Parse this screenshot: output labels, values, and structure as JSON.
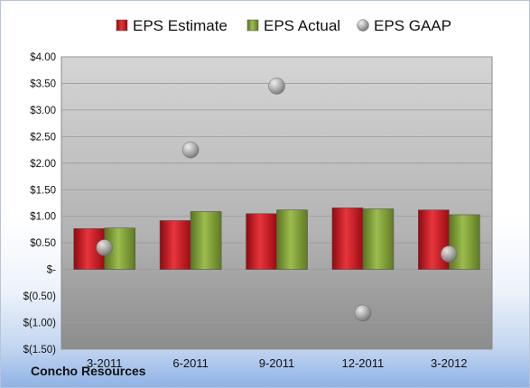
{
  "company": "Concho Resources",
  "chart_data": {
    "type": "bar",
    "title": "",
    "xlabel": "",
    "ylabel": "",
    "categories": [
      "3-2011",
      "6-2011",
      "9-2011",
      "12-2011",
      "3-2012"
    ],
    "series": [
      {
        "name": "EPS Estimate",
        "type": "bar",
        "color": "#c8101a",
        "values": [
          0.77,
          0.92,
          1.05,
          1.16,
          1.12
        ]
      },
      {
        "name": "EPS Actual",
        "type": "bar",
        "color": "#7a9a2c",
        "values": [
          0.78,
          1.09,
          1.12,
          1.14,
          1.03
        ]
      },
      {
        "name": "EPS GAAP",
        "type": "scatter",
        "color": "#a0a0a0",
        "values": [
          0.41,
          2.25,
          3.45,
          -0.82,
          0.29
        ]
      }
    ],
    "ylim": [
      -1.5,
      4.0
    ],
    "yticks": [
      4.0,
      3.5,
      3.0,
      2.5,
      2.0,
      1.5,
      1.0,
      0.5,
      0,
      -0.5,
      -1.0,
      -1.5
    ],
    "ytick_labels": [
      "$4.00",
      "$3.50",
      "$3.00",
      "$2.50",
      "$2.00",
      "$1.50",
      "$1.00",
      "$0.50",
      "$-",
      "$(0.50)",
      "$(1.00)",
      "$(1.50)"
    ],
    "grid": true,
    "legend_position": "top"
  }
}
